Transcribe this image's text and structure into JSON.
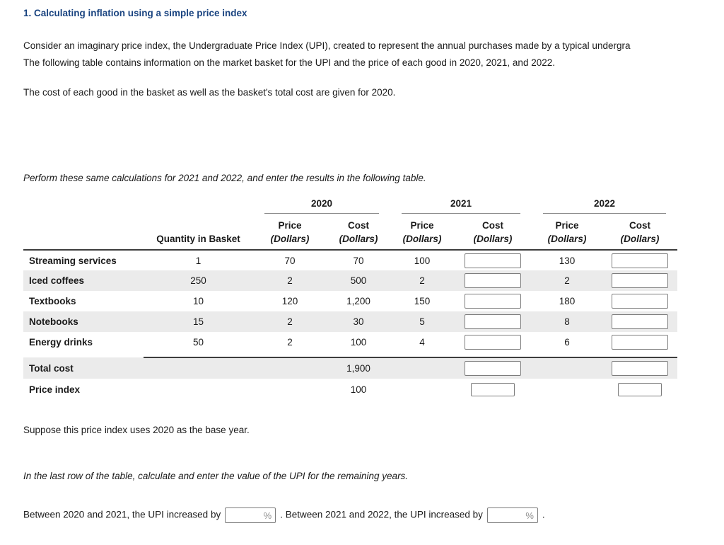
{
  "title": "1. Calculating inflation using a simple price index",
  "intro": {
    "line1": "Consider an imaginary price index, the Undergraduate Price Index (UPI), created to represent the annual purchases made by a typical undergra",
    "line2": "The following table contains information on the market basket for the UPI and the price of each good in 2020, 2021, and 2022.",
    "line3": "The cost of each good in the basket as well as the basket's total cost are given for 2020.",
    "instruction": "Perform these same calculations for 2021 and 2022, and enter the results in the following table."
  },
  "table": {
    "years": [
      "2020",
      "2021",
      "2022"
    ],
    "headers": {
      "quantity": "Quantity in Basket",
      "price": "Price",
      "cost": "Cost",
      "unit": "(Dollars)"
    },
    "rows": [
      {
        "name": "Streaming services",
        "quantity": "1",
        "price2020": "70",
        "cost2020": "70",
        "price2021": "100",
        "price2022": "130"
      },
      {
        "name": "Iced coffees",
        "quantity": "250",
        "price2020": "2",
        "cost2020": "500",
        "price2021": "2",
        "price2022": "2"
      },
      {
        "name": "Textbooks",
        "quantity": "10",
        "price2020": "120",
        "cost2020": "1,200",
        "price2021": "150",
        "price2022": "180"
      },
      {
        "name": "Notebooks",
        "quantity": "15",
        "price2020": "2",
        "cost2020": "30",
        "price2021": "5",
        "price2022": "8"
      },
      {
        "name": "Energy drinks",
        "quantity": "50",
        "price2020": "2",
        "cost2020": "100",
        "price2021": "4",
        "price2022": "6"
      }
    ],
    "total": {
      "label": "Total cost",
      "cost2020": "1,900"
    },
    "index": {
      "label": "Price index",
      "value2020": "100"
    }
  },
  "outro": {
    "base_year_note": "Suppose this price index uses 2020 as the base year.",
    "instruction": "In the last row of the table, calculate and enter the value of the UPI for the remaining years.",
    "q_part1": "Between 2020 and 2021, the UPI increased by",
    "q_part2": ". Between 2021 and 2022, the UPI increased by",
    "q_part3": ".",
    "percent": "%"
  }
}
